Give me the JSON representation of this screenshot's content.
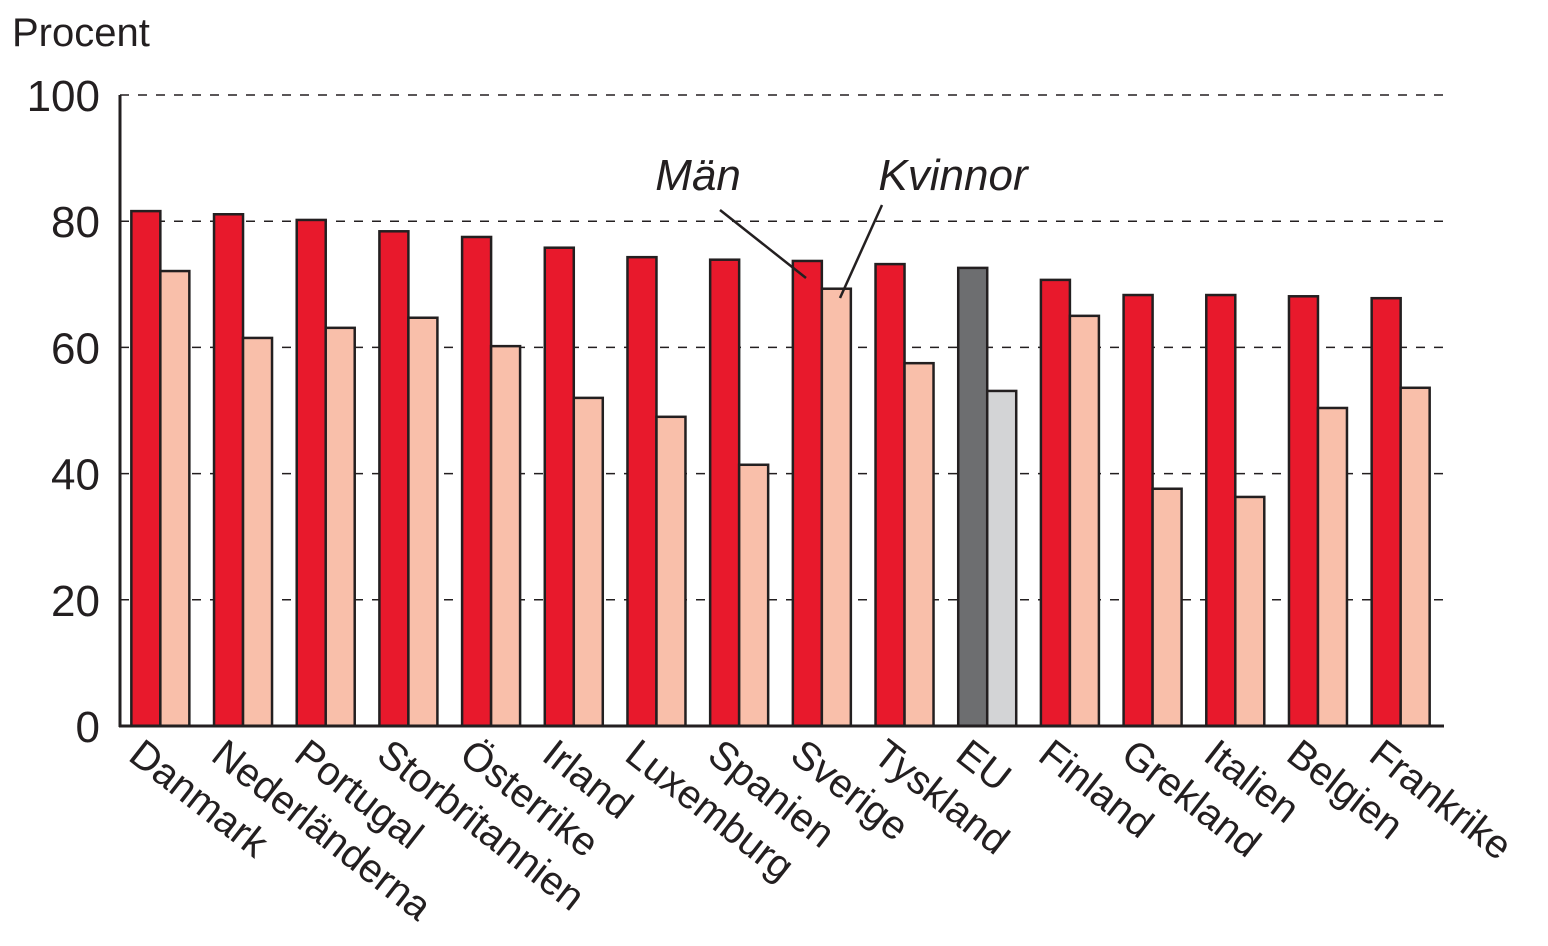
{
  "chart_data": {
    "type": "bar",
    "y_label": "Procent",
    "categories": [
      "Danmark",
      "Nederländerna",
      "Portugal",
      "Storbritannien",
      "Österrike",
      "Irland",
      "Luxemburg",
      "Spanien",
      "Sverige",
      "Tyskland",
      "EU",
      "Finland",
      "Grekland",
      "Italien",
      "Belgien",
      "Frankrike"
    ],
    "series": [
      {
        "name": "Män",
        "color": "#e8192c",
        "colors": [
          "#e8192c",
          "#e8192c",
          "#e8192c",
          "#e8192c",
          "#e8192c",
          "#e8192c",
          "#e8192c",
          "#e8192c",
          "#e8192c",
          "#e8192c",
          "#6d6e70",
          "#e8192c",
          "#e8192c",
          "#e8192c",
          "#e8192c",
          "#e8192c"
        ],
        "values": [
          81.6,
          81.1,
          80.2,
          78.4,
          77.5,
          75.8,
          74.3,
          73.9,
          73.7,
          73.2,
          72.6,
          70.7,
          68.3,
          68.3,
          68.1,
          67.8
        ]
      },
      {
        "name": "Kvinnor",
        "color": "#f9bfaa",
        "colors": [
          "#f9bfaa",
          "#f9bfaa",
          "#f9bfaa",
          "#f9bfaa",
          "#f9bfaa",
          "#f9bfaa",
          "#f9bfaa",
          "#f9bfaa",
          "#f9bfaa",
          "#f9bfaa",
          "#d3d4d6",
          "#f9bfaa",
          "#f9bfaa",
          "#f9bfaa",
          "#f9bfaa",
          "#f9bfaa"
        ],
        "values": [
          72.1,
          61.5,
          63.1,
          64.7,
          60.2,
          52.0,
          49.0,
          41.4,
          69.3,
          57.5,
          53.1,
          65.0,
          37.6,
          36.3,
          50.4,
          53.6
        ]
      }
    ],
    "ylim": [
      0,
      100
    ],
    "yticks": [
      0,
      20,
      40,
      60,
      80,
      100
    ],
    "grid": true
  }
}
